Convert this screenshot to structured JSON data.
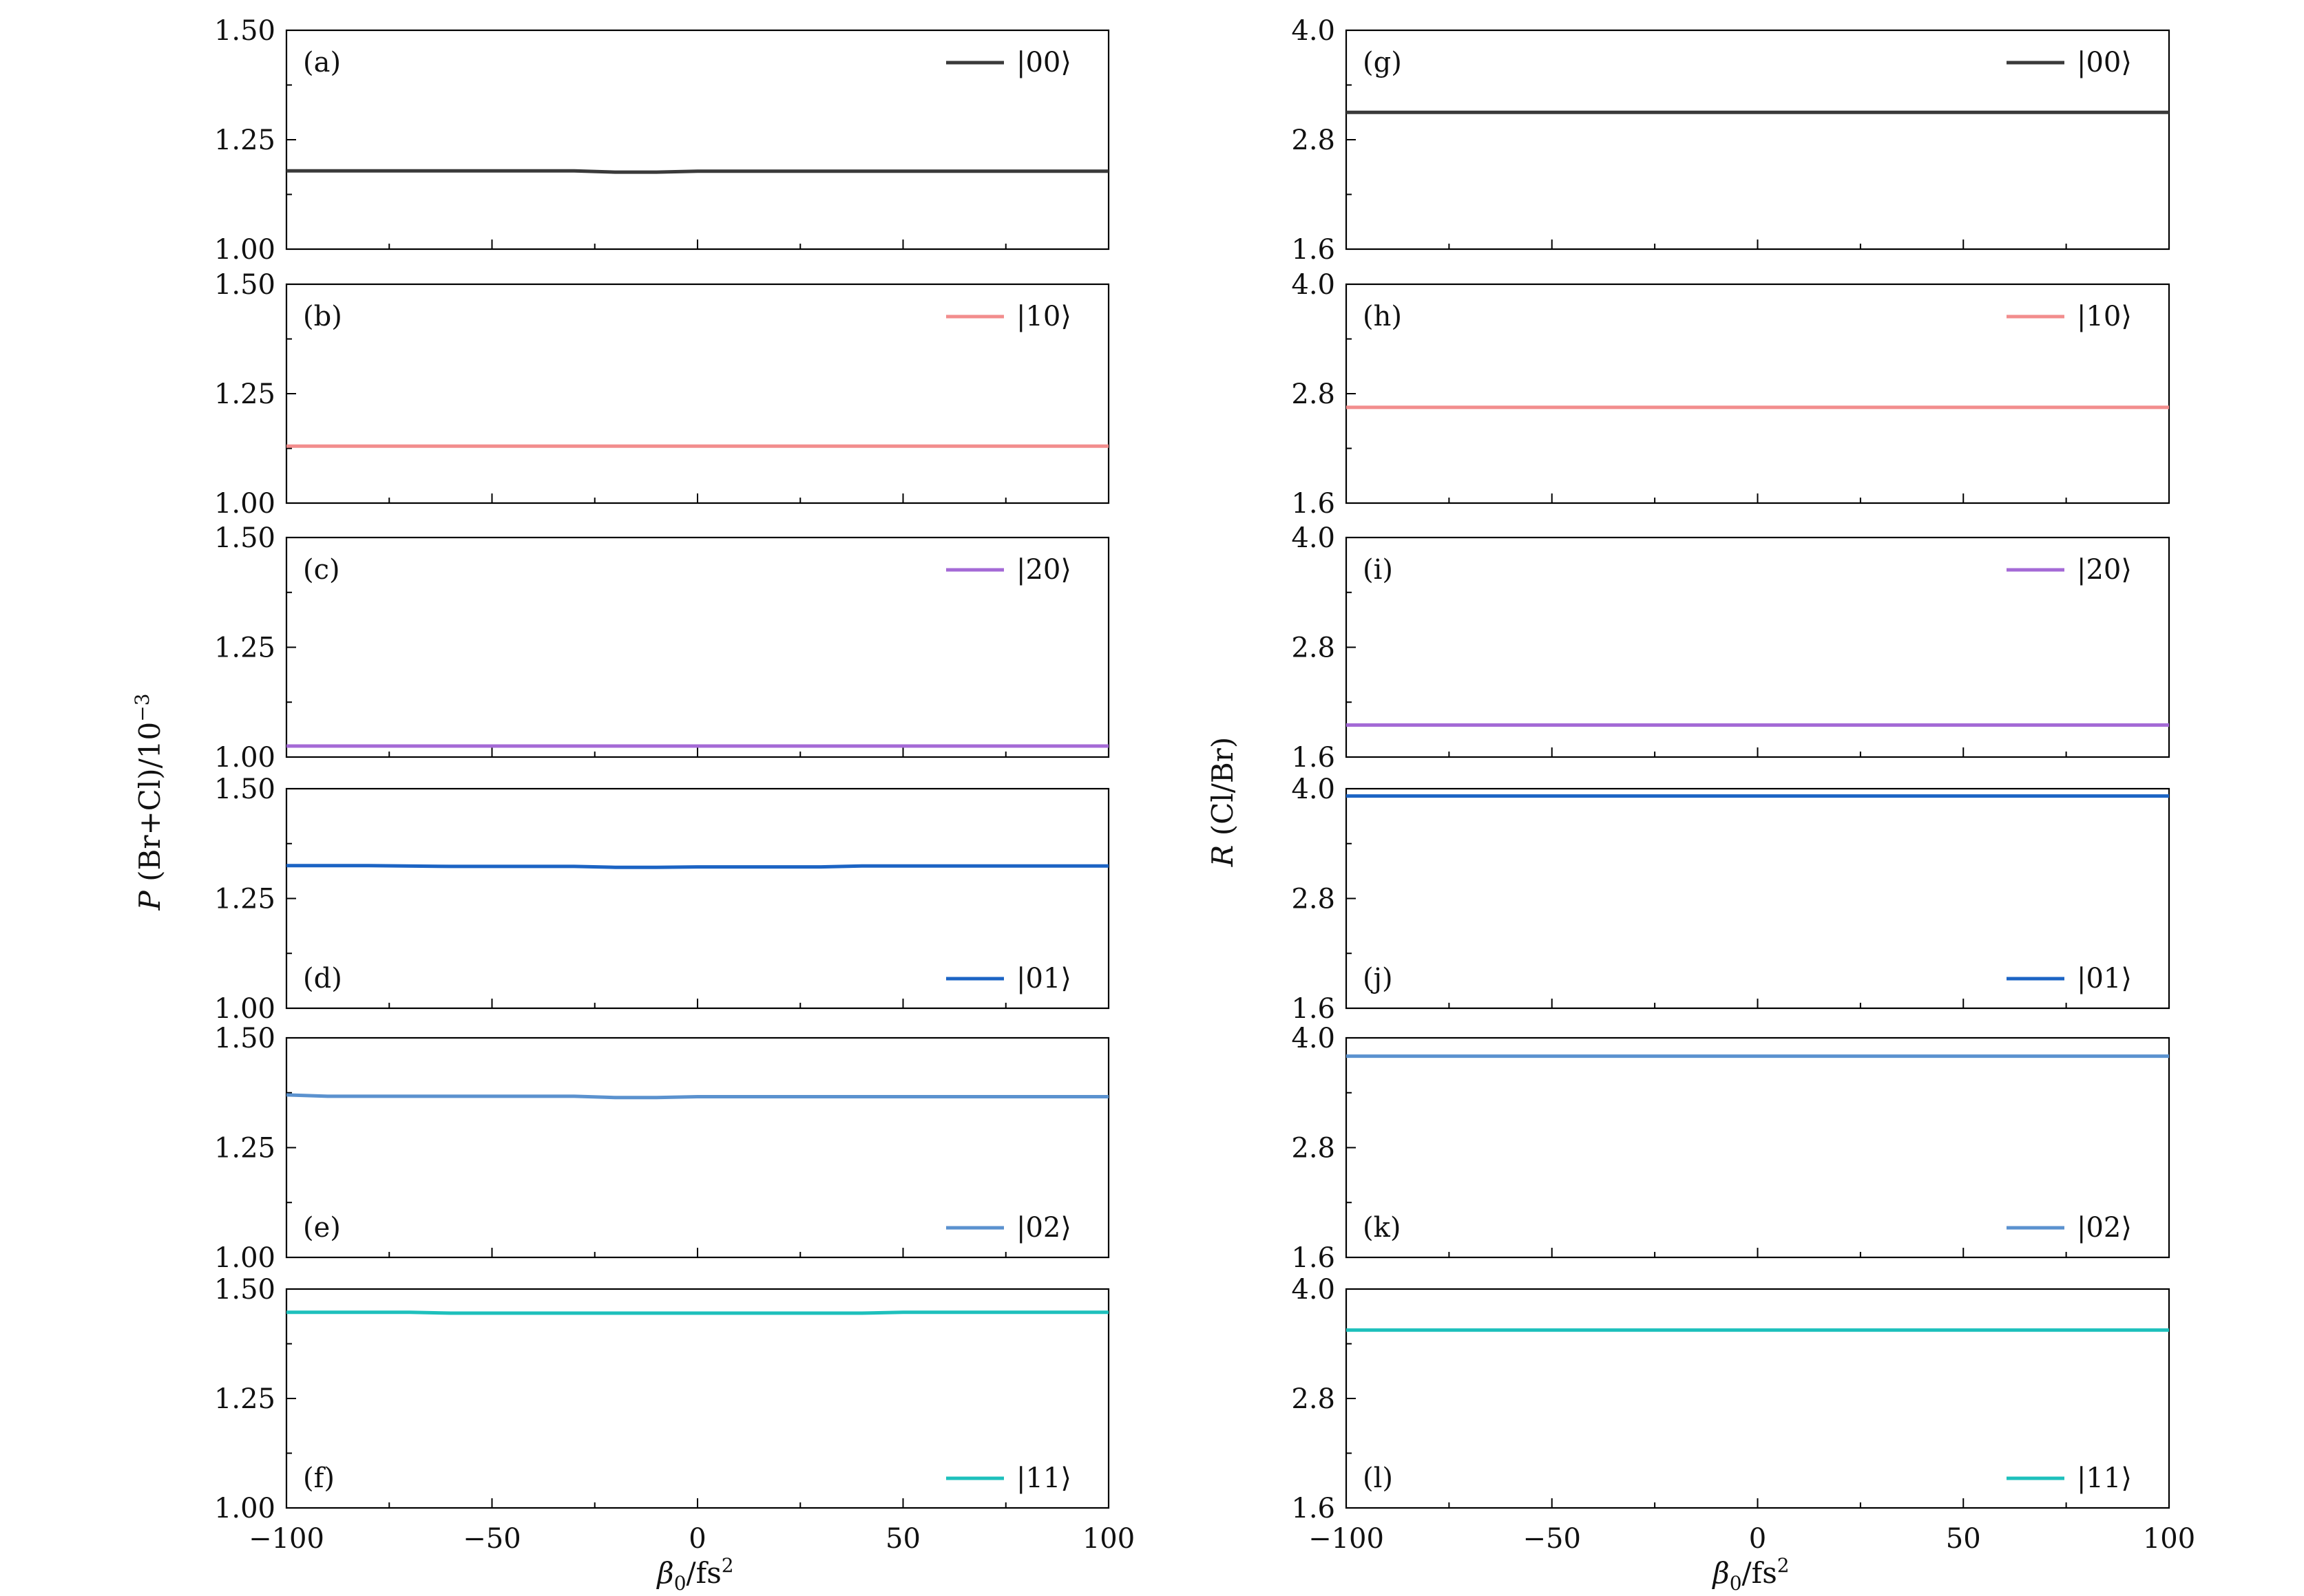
{
  "chart_data": [
    {
      "type": "line",
      "panel": "(a)",
      "state": "|00⟩",
      "series": [
        {
          "name": "|00⟩",
          "x": [
            -100,
            -80,
            -60,
            -40,
            -30,
            -20,
            -10,
            0,
            10,
            20,
            30,
            40,
            60,
            80,
            100
          ],
          "y": [
            1.179,
            1.179,
            1.179,
            1.179,
            1.179,
            1.176,
            1.176,
            1.178,
            1.178,
            1.178,
            1.178,
            1.178,
            1.178,
            1.178,
            1.178
          ]
        }
      ],
      "color": "#3a3a3a",
      "ylim": [
        1.0,
        1.5
      ],
      "yticks": [
        "1.00",
        "1.25",
        "1.50"
      ],
      "legend": "top-right"
    },
    {
      "type": "line",
      "panel": "(b)",
      "state": "|10⟩",
      "series": [
        {
          "name": "|10⟩",
          "x": [
            -100,
            100
          ],
          "y": [
            1.13,
            1.13
          ]
        }
      ],
      "color": "#f28d8d",
      "ylim": [
        1.0,
        1.5
      ],
      "yticks": [
        "1.00",
        "1.25",
        "1.50"
      ],
      "legend": "top-right"
    },
    {
      "type": "line",
      "panel": "(c)",
      "state": "|20⟩",
      "series": [
        {
          "name": "|20⟩",
          "x": [
            -100,
            100
          ],
          "y": [
            1.025,
            1.025
          ]
        }
      ],
      "color": "#a46ad6",
      "ylim": [
        1.0,
        1.5
      ],
      "yticks": [
        "1.00",
        "1.25",
        "1.50"
      ],
      "legend": "top-right"
    },
    {
      "type": "line",
      "panel": "(d)",
      "state": "|01⟩",
      "series": [
        {
          "name": "|01⟩",
          "x": [
            -100,
            -80,
            -60,
            -40,
            -30,
            -20,
            -10,
            0,
            10,
            20,
            30,
            40,
            60,
            80,
            100
          ],
          "y": [
            1.325,
            1.325,
            1.323,
            1.323,
            1.323,
            1.321,
            1.321,
            1.322,
            1.322,
            1.322,
            1.322,
            1.324,
            1.324,
            1.324,
            1.324
          ]
        }
      ],
      "color": "#1c64c4",
      "ylim": [
        1.0,
        1.5
      ],
      "yticks": [
        "1.00",
        "1.25",
        "1.50"
      ],
      "legend": "bottom-right"
    },
    {
      "type": "line",
      "panel": "(e)",
      "state": "|02⟩",
      "series": [
        {
          "name": "|02⟩",
          "x": [
            -100,
            -90,
            -80,
            -60,
            -40,
            -30,
            -20,
            -10,
            0,
            10,
            20,
            30,
            40,
            60,
            80,
            100
          ],
          "y": [
            1.37,
            1.367,
            1.367,
            1.367,
            1.367,
            1.367,
            1.364,
            1.364,
            1.366,
            1.366,
            1.366,
            1.366,
            1.366,
            1.366,
            1.366,
            1.366
          ]
        }
      ],
      "color": "#5b92cf",
      "ylim": [
        1.0,
        1.5
      ],
      "yticks": [
        "1.00",
        "1.25",
        "1.50"
      ],
      "legend": "bottom-right"
    },
    {
      "type": "line",
      "panel": "(f)",
      "state": "|11⟩",
      "series": [
        {
          "name": "|11⟩",
          "x": [
            -100,
            -80,
            -70,
            -60,
            -40,
            -20,
            0,
            20,
            40,
            50,
            60,
            80,
            100
          ],
          "y": [
            1.447,
            1.447,
            1.447,
            1.445,
            1.445,
            1.445,
            1.445,
            1.445,
            1.445,
            1.447,
            1.447,
            1.447,
            1.447
          ]
        }
      ],
      "color": "#1ec0bc",
      "ylim": [
        1.0,
        1.5
      ],
      "yticks": [
        "1.00",
        "1.25",
        "1.50"
      ],
      "legend": "bottom-right"
    },
    {
      "type": "line",
      "panel": "(g)",
      "state": "|00⟩",
      "series": [
        {
          "name": "|00⟩",
          "x": [
            -100,
            100
          ],
          "y": [
            3.1,
            3.1
          ]
        }
      ],
      "color": "#3a3a3a",
      "ylim": [
        1.6,
        4.0
      ],
      "yticks": [
        "1.6",
        "2.8",
        "4.0"
      ],
      "legend": "top-right"
    },
    {
      "type": "line",
      "panel": "(h)",
      "state": "|10⟩",
      "series": [
        {
          "name": "|10⟩",
          "x": [
            -100,
            100
          ],
          "y": [
            2.65,
            2.65
          ]
        }
      ],
      "color": "#f28d8d",
      "ylim": [
        1.6,
        4.0
      ],
      "yticks": [
        "1.6",
        "2.8",
        "4.0"
      ],
      "legend": "top-right"
    },
    {
      "type": "line",
      "panel": "(i)",
      "state": "|20⟩",
      "series": [
        {
          "name": "|20⟩",
          "x": [
            -100,
            100
          ],
          "y": [
            1.95,
            1.95
          ]
        }
      ],
      "color": "#a46ad6",
      "ylim": [
        1.6,
        4.0
      ],
      "yticks": [
        "1.6",
        "2.8",
        "4.0"
      ],
      "legend": "top-right"
    },
    {
      "type": "line",
      "panel": "(j)",
      "state": "|01⟩",
      "series": [
        {
          "name": "|01⟩",
          "x": [
            -100,
            100
          ],
          "y": [
            3.92,
            3.92
          ]
        }
      ],
      "color": "#1c64c4",
      "ylim": [
        1.6,
        4.0
      ],
      "yticks": [
        "1.6",
        "2.8",
        "4.0"
      ],
      "legend": "bottom-right"
    },
    {
      "type": "line",
      "panel": "(k)",
      "state": "|02⟩",
      "series": [
        {
          "name": "|02⟩",
          "x": [
            -100,
            100
          ],
          "y": [
            3.8,
            3.8
          ]
        }
      ],
      "color": "#5b92cf",
      "ylim": [
        1.6,
        4.0
      ],
      "yticks": [
        "1.6",
        "2.8",
        "4.0"
      ],
      "legend": "bottom-right"
    },
    {
      "type": "line",
      "panel": "(l)",
      "state": "|11⟩",
      "series": [
        {
          "name": "|11⟩",
          "x": [
            -100,
            100
          ],
          "y": [
            3.55,
            3.55
          ]
        }
      ],
      "color": "#1ec0bc",
      "ylim": [
        1.6,
        4.0
      ],
      "yticks": [
        "1.6",
        "2.8",
        "4.0"
      ],
      "legend": "bottom-right"
    }
  ],
  "xaxis": {
    "xlim": [
      -100,
      100
    ],
    "ticks": [
      -100,
      -50,
      0,
      50,
      100
    ],
    "tick_labels": [
      "−100",
      "−50",
      "0",
      "50",
      "100"
    ],
    "label_base": "β",
    "label_sub": "0",
    "label_rest": "/fs",
    "label_sup": "2"
  },
  "left_ylabel": {
    "symbol": "P",
    "text": "(Br+Cl)/10",
    "sup": "−3"
  },
  "right_ylabel": {
    "symbol": "R",
    "text": "(Cl/Br)"
  }
}
